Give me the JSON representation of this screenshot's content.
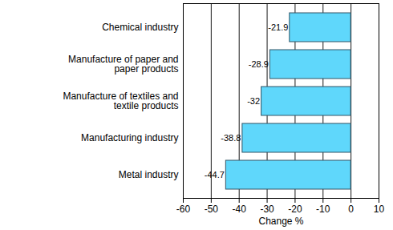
{
  "chart_data": {
    "type": "bar",
    "orientation": "horizontal",
    "categories": [
      "Chemical industry",
      "Manufacture of paper and paper products",
      "Manufacture of textiles and textile products",
      "Manufacturing industry",
      "Metal industry"
    ],
    "values": [
      -21.9,
      -28.9,
      -32,
      -38.8,
      -44.7
    ],
    "color": "#5fd7fb",
    "xlabel": "Change %",
    "xlim": [
      -60,
      10
    ],
    "xticks": [
      -60,
      -50,
      -40,
      -30,
      -20,
      -10,
      0,
      10
    ],
    "grid": true,
    "data_labels": true
  }
}
